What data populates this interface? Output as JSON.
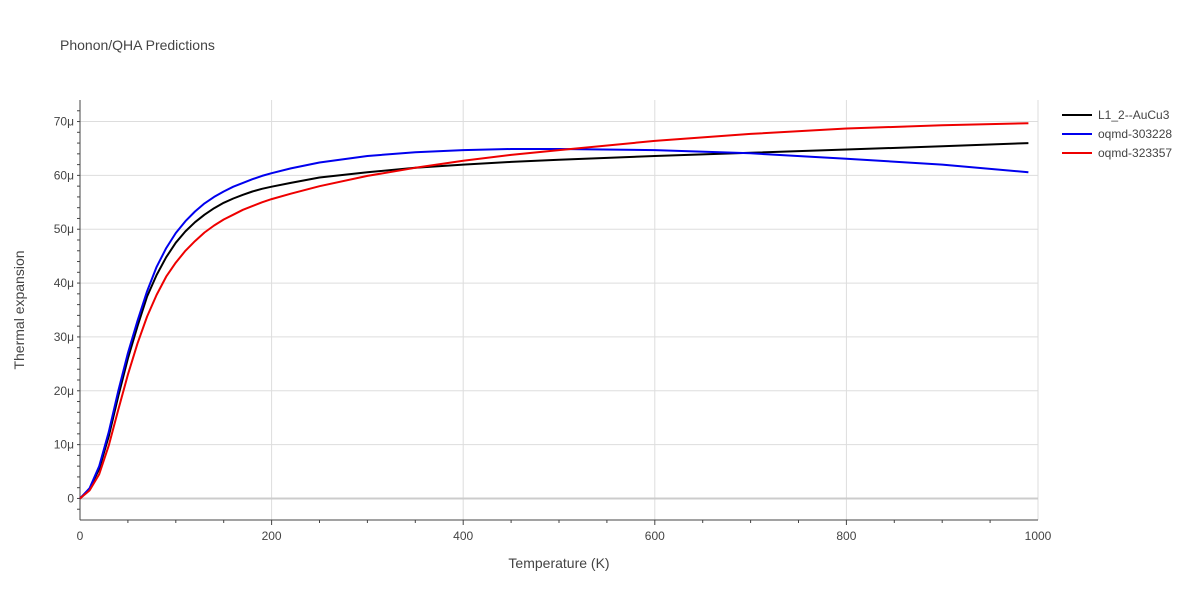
{
  "chart_data": {
    "type": "line",
    "title": "Phonon/QHA Predictions",
    "xlabel": "Temperature (K)",
    "ylabel": "Thermal expansion",
    "xlim": [
      0,
      1000
    ],
    "ylim": [
      -4e-06,
      7.4e-05
    ],
    "x_ticks": [
      0,
      200,
      400,
      600,
      800,
      1000
    ],
    "x_tick_labels": [
      "0",
      "200",
      "400",
      "600",
      "800",
      "1000"
    ],
    "y_ticks": [
      0,
      1e-05,
      2e-05,
      3e-05,
      4e-05,
      5e-05,
      6e-05,
      7e-05
    ],
    "y_tick_labels": [
      "0",
      "10μ",
      "20μ",
      "30μ",
      "40μ",
      "50μ",
      "60μ",
      "70μ"
    ],
    "grid": true,
    "legend_position": "top-right",
    "series": [
      {
        "name": "L1_2--AuCu3",
        "color": "#000000",
        "x": [
          0,
          10,
          20,
          30,
          40,
          50,
          60,
          70,
          80,
          90,
          100,
          110,
          120,
          130,
          140,
          150,
          160,
          170,
          180,
          190,
          200,
          220,
          250,
          300,
          350,
          400,
          450,
          500,
          600,
          700,
          800,
          900,
          990
        ],
        "y": [
          0,
          1.8e-06,
          5.5e-06,
          1.15e-05,
          1.9e-05,
          2.6e-05,
          3.2e-05,
          3.75e-05,
          4.15e-05,
          4.48e-05,
          4.75e-05,
          4.96e-05,
          5.13e-05,
          5.27e-05,
          5.39e-05,
          5.49e-05,
          5.57e-05,
          5.64e-05,
          5.7e-05,
          5.75e-05,
          5.79e-05,
          5.86e-05,
          5.96e-05,
          6.06e-05,
          6.14e-05,
          6.2e-05,
          6.25e-05,
          6.29e-05,
          6.36e-05,
          6.42e-05,
          6.48e-05,
          6.54e-05,
          6.6e-05
        ]
      },
      {
        "name": "oqmd-303228",
        "color": "#0000ee",
        "x": [
          0,
          10,
          20,
          30,
          40,
          50,
          60,
          70,
          80,
          90,
          100,
          110,
          120,
          130,
          140,
          150,
          160,
          170,
          180,
          190,
          200,
          220,
          250,
          300,
          350,
          400,
          450,
          500,
          600,
          700,
          800,
          900,
          990
        ],
        "y": [
          0,
          1.9e-06,
          6e-06,
          1.23e-05,
          2e-05,
          2.7e-05,
          3.3e-05,
          3.85e-05,
          4.3e-05,
          4.65e-05,
          4.93e-05,
          5.15e-05,
          5.33e-05,
          5.48e-05,
          5.6e-05,
          5.7e-05,
          5.79e-05,
          5.86e-05,
          5.93e-05,
          5.99e-05,
          6.04e-05,
          6.13e-05,
          6.24e-05,
          6.36e-05,
          6.43e-05,
          6.47e-05,
          6.49e-05,
          6.49e-05,
          6.47e-05,
          6.41e-05,
          6.31e-05,
          6.2e-05,
          6.06e-05
        ]
      },
      {
        "name": "oqmd-323357",
        "color": "#ee0000",
        "x": [
          0,
          10,
          20,
          30,
          40,
          50,
          60,
          70,
          80,
          90,
          100,
          110,
          120,
          130,
          140,
          150,
          160,
          170,
          180,
          190,
          200,
          220,
          250,
          300,
          350,
          400,
          450,
          500,
          600,
          700,
          800,
          900,
          990
        ],
        "y": [
          0,
          1.5e-06,
          4.5e-06,
          9.8e-06,
          1.65e-05,
          2.3e-05,
          2.88e-05,
          3.38e-05,
          3.78e-05,
          4.12e-05,
          4.38e-05,
          4.6e-05,
          4.78e-05,
          4.94e-05,
          5.07e-05,
          5.18e-05,
          5.27e-05,
          5.36e-05,
          5.43e-05,
          5.5e-05,
          5.56e-05,
          5.66e-05,
          5.8e-05,
          5.99e-05,
          6.14e-05,
          6.27e-05,
          6.38e-05,
          6.47e-05,
          6.64e-05,
          6.77e-05,
          6.87e-05,
          6.93e-05,
          6.97e-05
        ]
      }
    ]
  }
}
